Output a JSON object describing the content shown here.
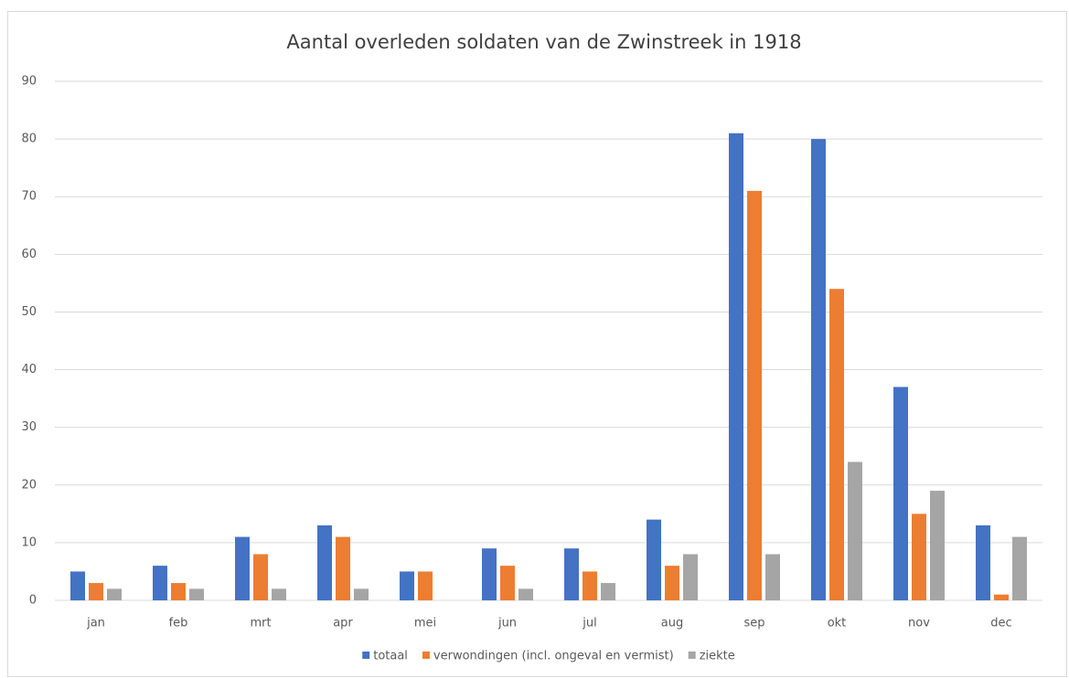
{
  "chart_data": {
    "type": "bar",
    "title": "Aantal overleden soldaten van de Zwinstreek in 1918",
    "categories": [
      "jan",
      "feb",
      "mrt",
      "apr",
      "mei",
      "jun",
      "jul",
      "aug",
      "sep",
      "okt",
      "nov",
      "dec"
    ],
    "series": [
      {
        "name": "totaal",
        "color": "#4472c4",
        "values": [
          5,
          6,
          11,
          13,
          5,
          9,
          9,
          14,
          81,
          80,
          37,
          13
        ]
      },
      {
        "name": "verwondingen (incl. ongeval en vermist)",
        "color": "#ed7d31",
        "values": [
          3,
          3,
          8,
          11,
          5,
          6,
          5,
          6,
          71,
          54,
          15,
          1
        ]
      },
      {
        "name": "ziekte",
        "color": "#a5a5a5",
        "values": [
          2,
          2,
          2,
          2,
          0,
          2,
          3,
          8,
          8,
          24,
          19,
          11
        ]
      }
    ],
    "ylim": [
      0,
      90
    ],
    "yticks": [
      0,
      10,
      20,
      30,
      40,
      50,
      60,
      70,
      80,
      90
    ],
    "grid": true,
    "legend": "bottom"
  }
}
